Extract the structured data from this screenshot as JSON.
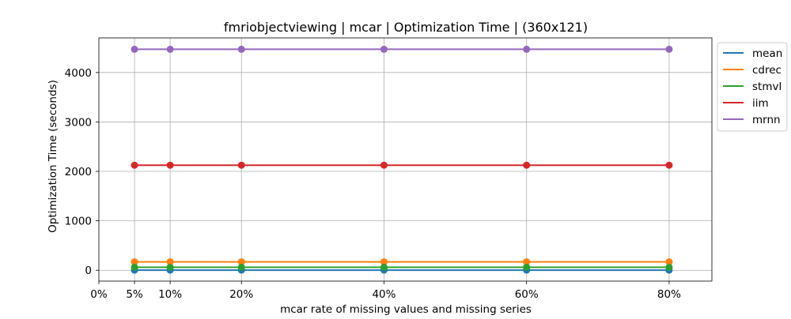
{
  "chart_data": {
    "type": "line",
    "title": "fmriobjectviewing | mcar | Optimization Time | (360x121)",
    "xlabel": "mcar rate of missing values and missing series",
    "ylabel": "Optimization Time (seconds)",
    "x": [
      0.05,
      0.1,
      0.2,
      0.4,
      0.6,
      0.8
    ],
    "xlim": [
      0.0,
      0.86
    ],
    "x_ticks": [
      {
        "value": 0.0,
        "label": "0%"
      },
      {
        "value": 0.05,
        "label": "5%"
      },
      {
        "value": 0.1,
        "label": "10%"
      },
      {
        "value": 0.2,
        "label": "20%"
      },
      {
        "value": 0.4,
        "label": "40%"
      },
      {
        "value": 0.6,
        "label": "60%"
      },
      {
        "value": 0.8,
        "label": "80%"
      }
    ],
    "ylim": [
      -220,
      4700
    ],
    "y_ticks": [
      {
        "value": 0,
        "label": "0"
      },
      {
        "value": 1000,
        "label": "1000"
      },
      {
        "value": 2000,
        "label": "2000"
      },
      {
        "value": 3000,
        "label": "3000"
      },
      {
        "value": 4000,
        "label": "4000"
      }
    ],
    "grid": true,
    "legend_position": "outside-right-top",
    "series": [
      {
        "name": "mean",
        "color": "#1f77b4",
        "values": [
          2,
          2,
          2,
          2,
          2,
          2
        ]
      },
      {
        "name": "cdrec",
        "color": "#ff7f0e",
        "values": [
          170,
          170,
          170,
          170,
          170,
          170
        ]
      },
      {
        "name": "stmvl",
        "color": "#2ca02c",
        "values": [
          60,
          60,
          60,
          60,
          60,
          60
        ]
      },
      {
        "name": "iim",
        "color": "#d62728",
        "values": [
          2125,
          2125,
          2125,
          2125,
          2125,
          2125
        ]
      },
      {
        "name": "mrnn",
        "color": "#9467bd",
        "values": [
          4470,
          4470,
          4470,
          4470,
          4470,
          4470
        ]
      }
    ]
  }
}
